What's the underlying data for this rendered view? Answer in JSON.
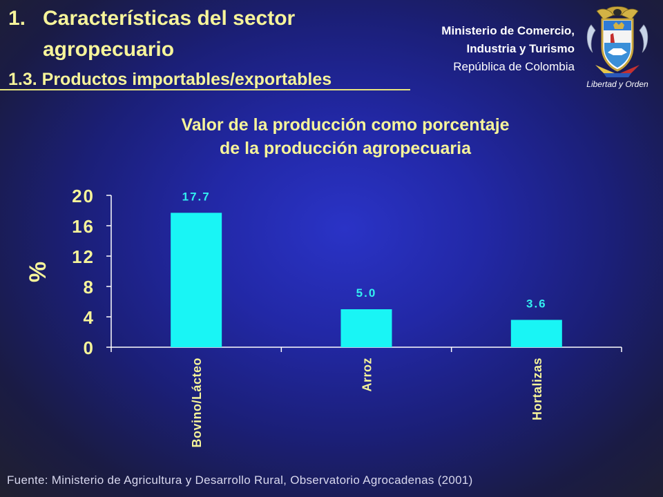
{
  "header": {
    "title_number": "1.",
    "title_line1": "Características del sector",
    "title_line2": "agropecuario",
    "subtitle": "1.3. Productos importables/exportables"
  },
  "ministry": {
    "line1": "Ministerio de Comercio,",
    "line2": "Industria y Turismo",
    "line3": "República de Colombia"
  },
  "seal": {
    "motto": "Libertad y Orden",
    "icon": "colombia-coat-of-arms-icon"
  },
  "colors": {
    "title": "#f6f49a",
    "bar": "#19f5f5",
    "data_label": "#33f0f0",
    "axis": "#ffffff",
    "tick_label": "#f6f49a"
  },
  "chart_data": {
    "type": "bar",
    "title": "Valor de la producción como porcentaje de la producción agropecuaria",
    "title_line1": "Valor de la producción como porcentaje",
    "title_line2": "de la producción agropecuaria",
    "ylabel": "%",
    "xlabel": "",
    "categories": [
      "Bovino/Lácteo",
      "Arroz",
      "Hortalizas"
    ],
    "values": [
      17.7,
      5.0,
      3.6
    ],
    "data_labels": [
      "17.7",
      "5.0",
      "3.6"
    ],
    "yticks": [
      0,
      4,
      8,
      12,
      16,
      20
    ],
    "ylim": [
      0,
      20
    ],
    "grid": false,
    "legend": "none"
  },
  "source": "Fuente: Ministerio de Agricultura y Desarrollo Rural, Observatorio Agrocadenas  (2001)"
}
